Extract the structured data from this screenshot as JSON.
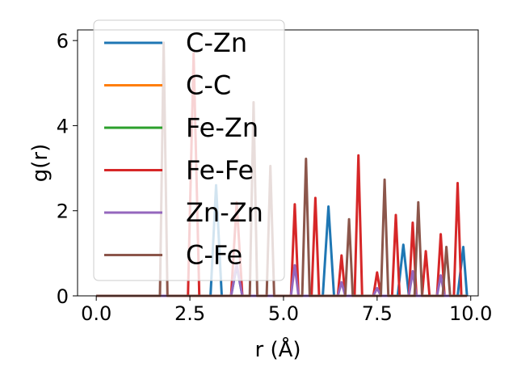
{
  "chart_data": {
    "type": "line",
    "xlabel": "r (Å)",
    "ylabel": "g(r)",
    "xlim": [
      -0.5,
      10.2
    ],
    "ylim": [
      0,
      6.25
    ],
    "xticks": [
      "0.0",
      "2.5",
      "5.0",
      "7.5",
      "10.0"
    ],
    "xtick_values": [
      0,
      2.5,
      5,
      7.5,
      10
    ],
    "yticks": [
      "0",
      "2",
      "4",
      "6"
    ],
    "ytick_values": [
      0,
      2,
      4,
      6
    ],
    "grid": false,
    "legend_position": "top-left",
    "series": [
      {
        "name": "C-Zn",
        "color": "#1f77b4",
        "x": [
          0,
          3.05,
          3.2,
          3.35,
          3.6,
          3.75,
          3.9,
          6.05,
          6.2,
          6.35,
          8.05,
          8.2,
          8.35,
          9.65,
          9.8,
          9.9
        ],
        "y": [
          0,
          0,
          2.6,
          0,
          0,
          0.7,
          0,
          0,
          2.1,
          0,
          0,
          1.2,
          0,
          0,
          1.15,
          0
        ]
      },
      {
        "name": "C-C",
        "color": "#ff7f0e",
        "x": [
          0,
          9.9
        ],
        "y": [
          0,
          0
        ]
      },
      {
        "name": "Fe-Zn",
        "color": "#2ca02c",
        "x": [
          0,
          9.9
        ],
        "y": [
          0,
          0
        ]
      },
      {
        "name": "Fe-Fe",
        "color": "#d62728",
        "x": [
          0,
          2.45,
          2.6,
          2.75,
          3.6,
          3.75,
          3.9,
          5.2,
          5.3,
          5.4,
          5.75,
          5.85,
          5.95,
          6.45,
          6.55,
          6.65,
          6.9,
          7.0,
          7.1,
          7.4,
          7.5,
          7.6,
          7.9,
          8.0,
          8.1,
          8.35,
          8.45,
          8.55,
          8.7,
          8.8,
          8.9,
          9.1,
          9.2,
          9.3,
          9.55,
          9.65,
          9.75,
          9.9
        ],
        "y": [
          0,
          0,
          5.7,
          0,
          0,
          2.2,
          0,
          0,
          2.15,
          0,
          0,
          2.3,
          0,
          0,
          0.95,
          0,
          0,
          3.3,
          0,
          0,
          0.55,
          0,
          0,
          1.9,
          0,
          0,
          1.72,
          0,
          0,
          1.05,
          0,
          0,
          1.45,
          0,
          0,
          2.65,
          0,
          0
        ]
      },
      {
        "name": "Zn-Zn",
        "color": "#9467bd",
        "x": [
          0,
          3.6,
          3.75,
          3.9,
          5.2,
          5.3,
          5.4,
          6.45,
          6.55,
          6.65,
          7.4,
          7.5,
          7.6,
          8.35,
          8.45,
          8.55,
          9.1,
          9.2,
          9.3,
          9.9
        ],
        "y": [
          0,
          0,
          0.75,
          0,
          0,
          0.72,
          0,
          0,
          0.32,
          0,
          0,
          0.18,
          0,
          0,
          0.58,
          0,
          0,
          0.48,
          0,
          0
        ]
      },
      {
        "name": "C-Fe",
        "color": "#8c564b",
        "x": [
          0,
          1.7,
          1.8,
          1.9,
          4.1,
          4.2,
          4.3,
          4.55,
          4.65,
          4.75,
          5.5,
          5.6,
          5.7,
          6.65,
          6.75,
          6.85,
          7.6,
          7.7,
          7.8,
          8.5,
          8.6,
          8.7,
          9.25,
          9.35,
          9.45,
          9.9
        ],
        "y": [
          0,
          0,
          5.95,
          0,
          0,
          4.55,
          0,
          0,
          3.05,
          0,
          0,
          3.22,
          0,
          0,
          1.8,
          0,
          0,
          2.73,
          0,
          0,
          2.2,
          0,
          0,
          1.15,
          0,
          0
        ]
      }
    ]
  }
}
